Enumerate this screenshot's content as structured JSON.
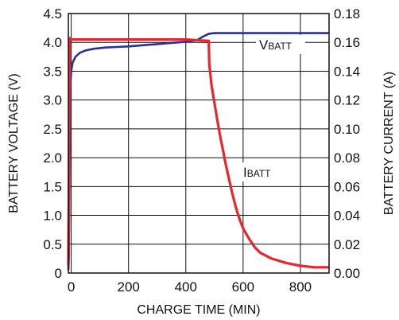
{
  "chart_data": {
    "type": "line",
    "xlabel": "CHARGE TIME (MIN)",
    "ylabel_left": "BATTERY VOLTAGE (V)",
    "ylabel_right": "BATTERY CURRENT (A)",
    "xlim": [
      -10,
      900
    ],
    "xticks": [
      0,
      200,
      400,
      600,
      800
    ],
    "ylim_left": [
      0,
      4.5
    ],
    "yticks_left": [
      "0",
      "0.5",
      "1.0",
      "1.5",
      "2.0",
      "2.5",
      "3.0",
      "3.5",
      "4.0",
      "4.5"
    ],
    "ylim_right": [
      0,
      0.18
    ],
    "yticks_right": [
      "0.00",
      "0.02",
      "0.04",
      "0.06",
      "0.08",
      "0.10",
      "0.12",
      "0.14",
      "0.16",
      "0.18"
    ],
    "grid": true,
    "series": [
      {
        "name": "VBATT",
        "label_main": "V",
        "label_sub": "BATT",
        "axis": "left",
        "color": "#2b2f8f",
        "x": [
          -10,
          -8,
          -6,
          -4,
          0,
          5,
          15,
          30,
          50,
          80,
          120,
          160,
          200,
          250,
          300,
          350,
          400,
          440,
          460,
          480,
          500,
          600,
          700,
          800,
          900
        ],
        "y": [
          0.05,
          0.3,
          1.5,
          3.2,
          3.5,
          3.65,
          3.75,
          3.82,
          3.86,
          3.89,
          3.91,
          3.92,
          3.93,
          3.95,
          3.97,
          3.99,
          4.01,
          4.04,
          4.1,
          4.15,
          4.16,
          4.16,
          4.16,
          4.16,
          4.16
        ]
      },
      {
        "name": "IBATT",
        "label_main": "I",
        "label_sub": "BATT",
        "axis": "right",
        "color": "#e8262b",
        "x": [
          -10,
          -8,
          -6,
          -5,
          0,
          100,
          200,
          300,
          400,
          480,
          482,
          490,
          500,
          510,
          520,
          530,
          540,
          550,
          560,
          570,
          580,
          590,
          600,
          620,
          640,
          660,
          700,
          750,
          800,
          850,
          900
        ],
        "y": [
          0.005,
          0.06,
          0.14,
          0.163,
          0.162,
          0.162,
          0.162,
          0.162,
          0.162,
          0.161,
          0.145,
          0.13,
          0.118,
          0.106,
          0.095,
          0.085,
          0.075,
          0.066,
          0.057,
          0.049,
          0.042,
          0.036,
          0.031,
          0.024,
          0.018,
          0.014,
          0.01,
          0.007,
          0.005,
          0.004,
          0.004
        ]
      }
    ]
  }
}
